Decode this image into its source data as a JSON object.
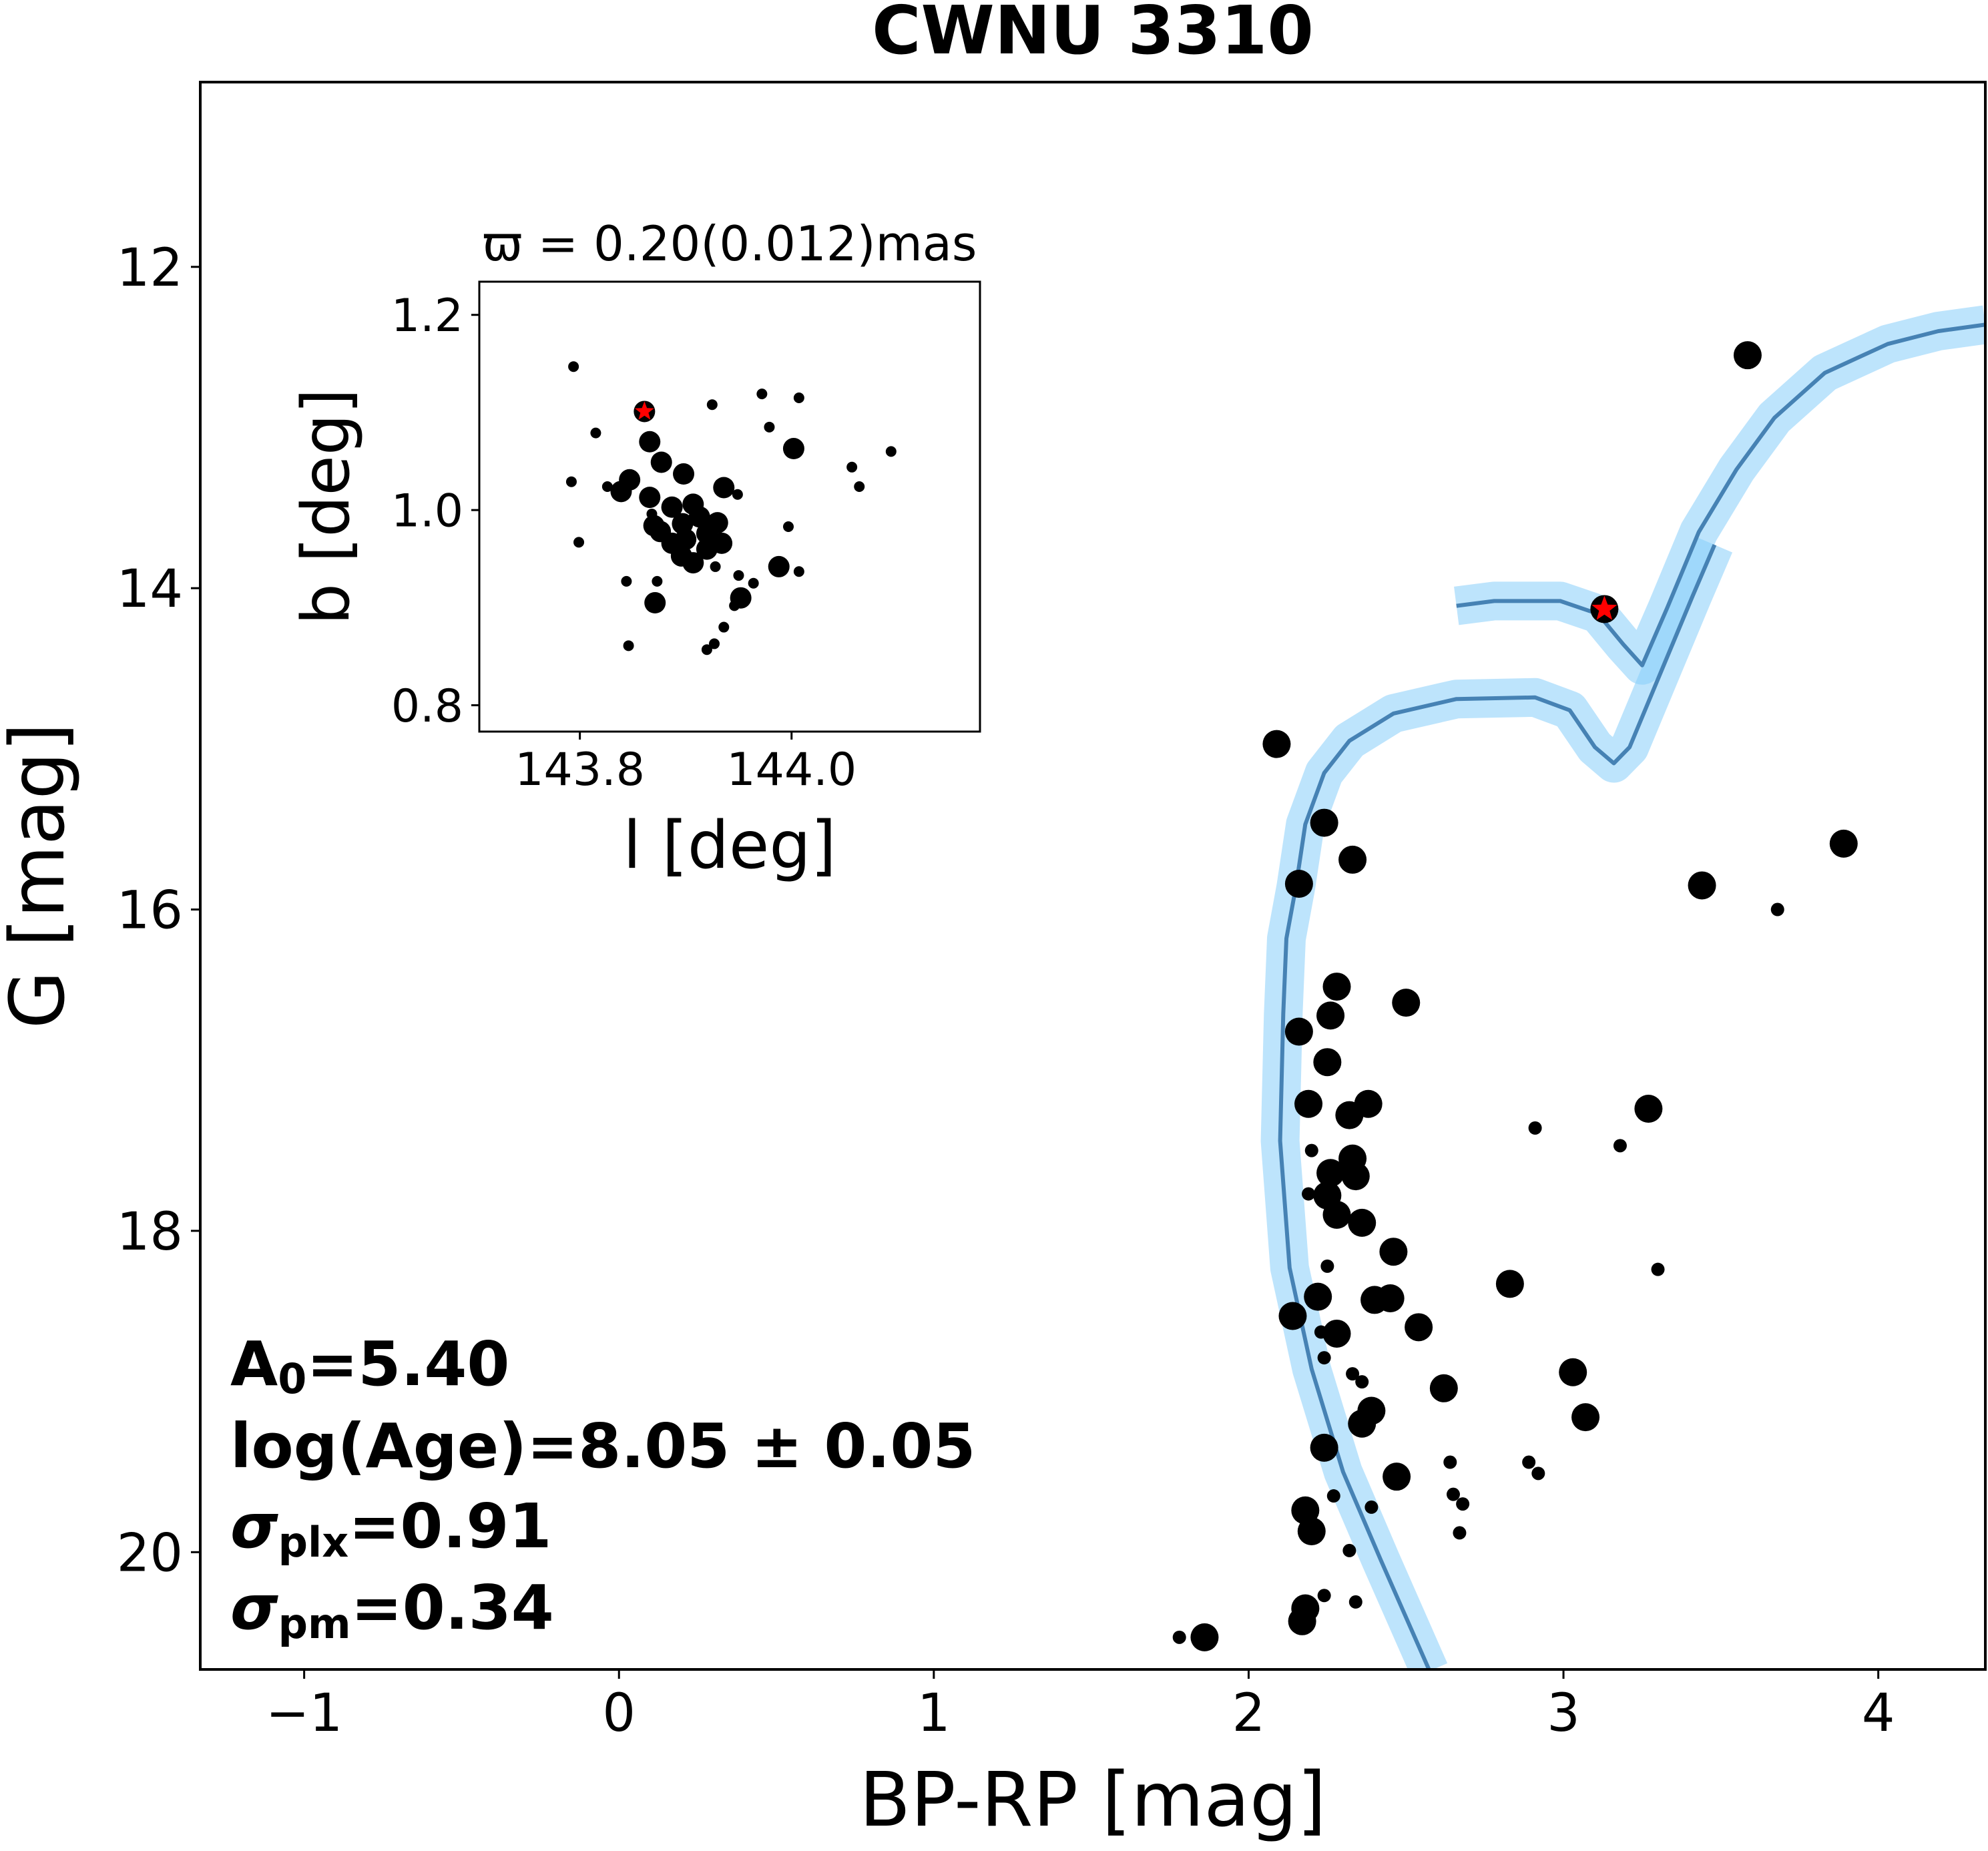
{
  "chart_data": [
    {
      "type": "scatter",
      "title": "CWNU 3310",
      "xlabel": "BP-RP [mag]",
      "ylabel": "G [mag]",
      "xlim": [
        -1.33,
        4.34
      ],
      "ylim": [
        20.73,
        10.85
      ],
      "xticks": [
        -1,
        0,
        1,
        2,
        3,
        4
      ],
      "xtick_labels": [
        "−1",
        "0",
        "1",
        "2",
        "3",
        "4"
      ],
      "yticks": [
        12,
        14,
        16,
        18,
        20
      ],
      "ytick_labels": [
        "12",
        "14",
        "16",
        "18",
        "20"
      ],
      "grid": false,
      "colors": {
        "points": "#000000",
        "star": "#ff0000",
        "isochrone": "#4682b4",
        "band": "#87cefa"
      },
      "annotations": {
        "a0_main": "A",
        "a0_sub": "0",
        "a0_value": "=5.40",
        "age": "log(Age)=8.05 ± 0.05",
        "plx_main": "σ",
        "plx_sub": "plx",
        "plx_value": "=0.91",
        "pm_main": "σ",
        "pm_sub": "pm",
        "pm_value": "=0.34"
      },
      "points_large": [
        [
          3.585,
          12.55
        ],
        [
          2.089,
          14.97
        ],
        [
          2.24,
          15.46
        ],
        [
          2.33,
          15.69
        ],
        [
          2.16,
          15.84
        ],
        [
          3.44,
          15.85
        ],
        [
          3.89,
          15.59
        ],
        [
          2.28,
          16.48
        ],
        [
          2.5,
          16.58
        ],
        [
          2.26,
          16.66
        ],
        [
          2.16,
          16.76
        ],
        [
          2.25,
          16.95
        ],
        [
          2.38,
          17.21
        ],
        [
          2.19,
          17.21
        ],
        [
          2.32,
          17.28
        ],
        [
          3.27,
          17.24
        ],
        [
          2.33,
          17.55
        ],
        [
          2.26,
          17.64
        ],
        [
          2.34,
          17.66
        ],
        [
          2.25,
          17.78
        ],
        [
          2.28,
          17.9
        ],
        [
          2.36,
          17.95
        ],
        [
          2.46,
          18.13
        ],
        [
          2.83,
          18.33
        ],
        [
          2.22,
          18.41
        ],
        [
          2.4,
          18.43
        ],
        [
          2.45,
          18.42
        ],
        [
          2.14,
          18.53
        ],
        [
          2.28,
          18.64
        ],
        [
          2.54,
          18.6
        ],
        [
          3.03,
          18.88
        ],
        [
          2.62,
          18.98
        ],
        [
          2.39,
          19.12
        ],
        [
          3.07,
          19.16
        ],
        [
          2.36,
          19.2
        ],
        [
          2.24,
          19.35
        ],
        [
          2.47,
          19.53
        ],
        [
          2.18,
          19.74
        ],
        [
          2.2,
          19.87
        ],
        [
          2.18,
          20.35
        ],
        [
          2.17,
          20.43
        ],
        [
          1.86,
          20.53
        ]
      ],
      "points_small": [
        [
          3.68,
          16.0
        ],
        [
          2.91,
          17.36
        ],
        [
          3.18,
          17.47
        ],
        [
          3.3,
          18.24
        ],
        [
          2.2,
          17.5
        ],
        [
          2.19,
          17.77
        ],
        [
          2.25,
          18.22
        ],
        [
          2.23,
          18.63
        ],
        [
          2.24,
          18.79
        ],
        [
          2.33,
          18.89
        ],
        [
          2.36,
          18.94
        ],
        [
          2.64,
          19.44
        ],
        [
          2.89,
          19.44
        ],
        [
          2.92,
          19.51
        ],
        [
          2.65,
          19.64
        ],
        [
          2.68,
          19.7
        ],
        [
          2.27,
          19.65
        ],
        [
          2.39,
          19.72
        ],
        [
          2.67,
          19.88
        ],
        [
          2.32,
          19.99
        ],
        [
          2.24,
          20.27
        ],
        [
          2.34,
          20.31
        ],
        [
          1.78,
          20.53
        ]
      ],
      "highlight_star": [
        3.13,
        14.13
      ],
      "isochrones": [
        {
          "name": "isochrone-main",
          "points": [
            [
              2.575,
              20.74
            ],
            [
              2.42,
              20.05
            ],
            [
              2.3,
              19.5
            ],
            [
              2.2,
              18.86
            ],
            [
              2.13,
              18.23
            ],
            [
              2.1,
              17.44
            ],
            [
              2.11,
              16.65
            ],
            [
              2.12,
              16.18
            ],
            [
              2.15,
              15.86
            ],
            [
              2.18,
              15.47
            ],
            [
              2.24,
              15.15
            ],
            [
              2.32,
              14.95
            ],
            [
              2.46,
              14.78
            ],
            [
              2.66,
              14.69
            ],
            [
              2.91,
              14.68
            ],
            [
              3.02,
              14.76
            ],
            [
              3.1,
              14.99
            ],
            [
              3.16,
              15.09
            ],
            [
              3.21,
              14.99
            ],
            [
              3.31,
              14.52
            ],
            [
              3.41,
              14.05
            ],
            [
              3.48,
              13.73
            ]
          ]
        },
        {
          "name": "isochrone-giant-branch",
          "points": [
            [
              2.66,
              14.11
            ],
            [
              2.78,
              14.08
            ],
            [
              2.99,
              14.08
            ],
            [
              3.11,
              14.16
            ],
            [
              3.19,
              14.35
            ],
            [
              3.25,
              14.48
            ],
            [
              3.33,
              14.12
            ],
            [
              3.43,
              13.65
            ],
            [
              3.55,
              13.26
            ],
            [
              3.67,
              12.94
            ],
            [
              3.83,
              12.66
            ],
            [
              4.03,
              12.48
            ],
            [
              4.19,
              12.4
            ],
            [
              4.34,
              12.36
            ]
          ]
        }
      ]
    },
    {
      "type": "scatter",
      "title": "ϖ = 0.20(0.012)mas",
      "xlabel": "l [deg]",
      "ylabel": "b [deg]",
      "xlim": [
        143.705,
        144.178
      ],
      "ylim": [
        0.773,
        1.234
      ],
      "xticks": [
        143.8,
        144.0
      ],
      "xtick_labels": [
        "143.8",
        "144.0"
      ],
      "yticks": [
        0.8,
        1.0,
        1.2
      ],
      "ytick_labels": [
        "0.8",
        "1.0",
        "1.2"
      ],
      "points_large": [
        [
          143.866,
          1.07
        ],
        [
          144.002,
          1.063
        ],
        [
          143.877,
          1.049
        ],
        [
          143.898,
          1.037
        ],
        [
          143.847,
          1.031
        ],
        [
          143.839,
          1.019
        ],
        [
          143.936,
          1.023
        ],
        [
          143.866,
          1.013
        ],
        [
          143.887,
          1.003
        ],
        [
          143.907,
          1.006
        ],
        [
          143.87,
          0.984
        ],
        [
          143.876,
          0.978
        ],
        [
          143.897,
          0.986
        ],
        [
          143.913,
          0.993
        ],
        [
          143.93,
          0.987
        ],
        [
          143.934,
          0.966
        ],
        [
          143.896,
          0.953
        ],
        [
          143.907,
          0.946
        ],
        [
          143.92,
          0.96
        ],
        [
          143.9,
          0.97
        ],
        [
          143.92,
          0.976
        ],
        [
          143.887,
          0.966
        ],
        [
          143.988,
          0.942
        ],
        [
          143.871,
          0.905
        ],
        [
          143.952,
          0.91
        ]
      ],
      "points_small": [
        [
          143.794,
          1.147
        ],
        [
          143.925,
          1.108
        ],
        [
          143.972,
          1.119
        ],
        [
          144.007,
          1.115
        ],
        [
          143.815,
          1.079
        ],
        [
          143.979,
          1.085
        ],
        [
          144.094,
          1.06
        ],
        [
          144.057,
          1.044
        ],
        [
          144.064,
          1.024
        ],
        [
          143.792,
          1.029
        ],
        [
          143.826,
          1.024
        ],
        [
          143.949,
          1.016
        ],
        [
          143.997,
          0.983
        ],
        [
          143.799,
          0.967
        ],
        [
          143.868,
          0.996
        ],
        [
          143.928,
          0.942
        ],
        [
          144.007,
          0.937
        ],
        [
          143.95,
          0.933
        ],
        [
          143.964,
          0.925
        ],
        [
          143.844,
          0.927
        ],
        [
          143.873,
          0.927
        ],
        [
          143.946,
          0.902
        ],
        [
          143.936,
          0.88
        ],
        [
          143.846,
          0.861
        ],
        [
          143.927,
          0.863
        ],
        [
          143.92,
          0.857
        ]
      ],
      "highlight_star": [
        143.861,
        1.101
      ]
    }
  ]
}
